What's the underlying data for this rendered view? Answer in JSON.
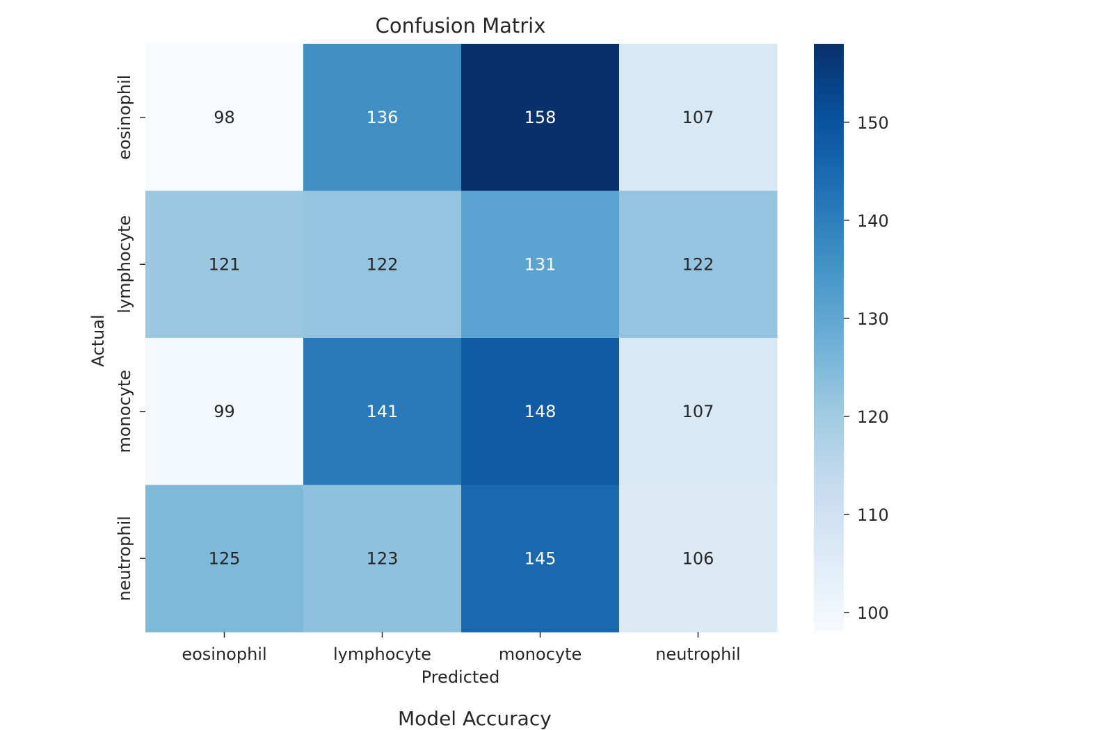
{
  "chart_data": {
    "type": "heatmap",
    "title": "Confusion Matrix",
    "xlabel": "Predicted",
    "ylabel": "Actual",
    "x_categories": [
      "eosinophil",
      "lymphocyte",
      "monocyte",
      "neutrophil"
    ],
    "y_categories": [
      "eosinophil",
      "lymphocyte",
      "monocyte",
      "neutrophil"
    ],
    "values": [
      [
        98,
        136,
        158,
        107
      ],
      [
        121,
        122,
        131,
        122
      ],
      [
        99,
        141,
        148,
        107
      ],
      [
        125,
        123,
        145,
        106
      ]
    ],
    "colormap": "Blues",
    "colorbar": {
      "range": [
        98,
        158
      ],
      "ticks": [
        100,
        110,
        120,
        130,
        140,
        150
      ]
    },
    "grid": false
  },
  "footer": {
    "title": "Model Accuracy"
  }
}
